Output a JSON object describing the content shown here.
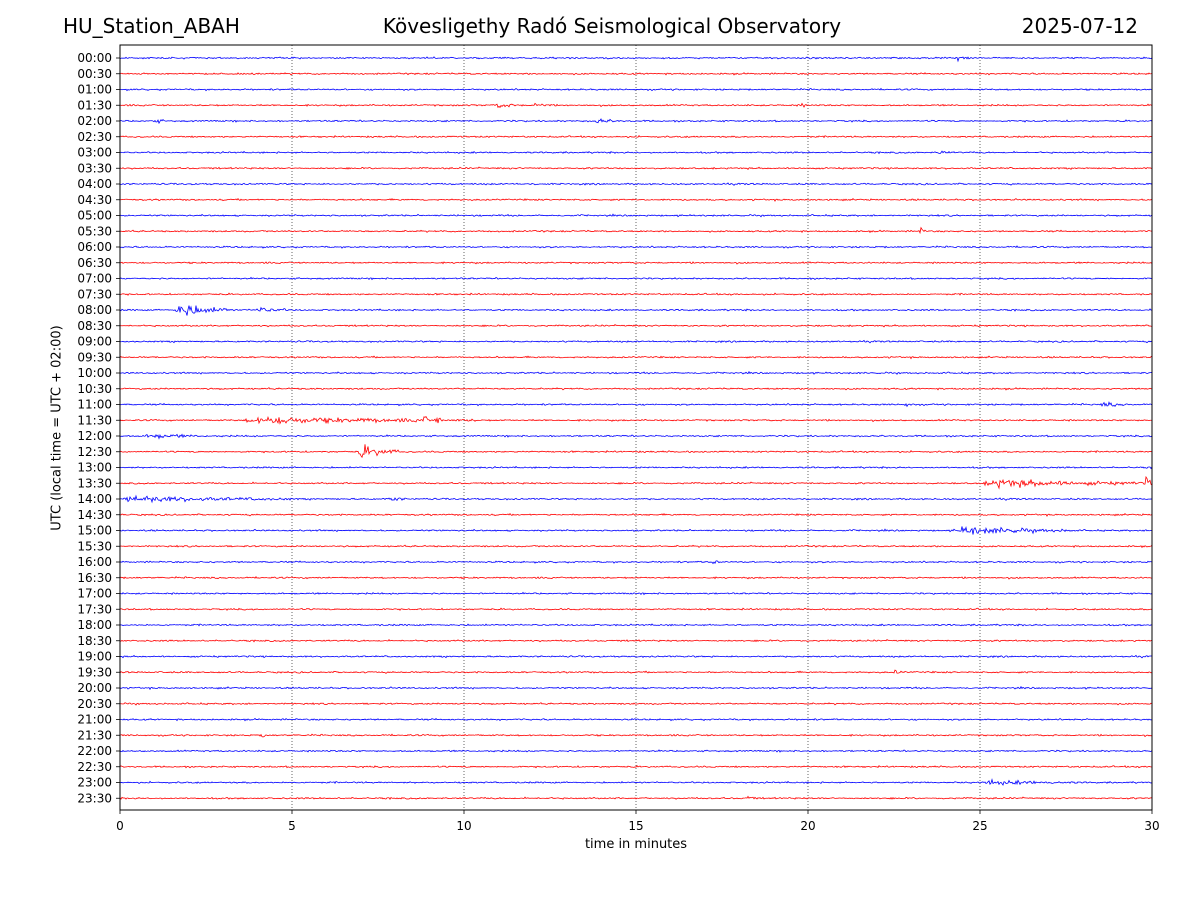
{
  "header": {
    "station": "HU_Station_ABAH",
    "observatory": "Kövesligethy Radó Seismological Observatory",
    "date": "2025-07-12"
  },
  "chart_data": {
    "type": "line",
    "title": "Kövesligethy Radó Seismological Observatory",
    "xlabel": "time in minutes",
    "ylabel": "UTC (local time = UTC + 02:00)",
    "xlim": [
      0,
      30
    ],
    "x_ticks": [
      0,
      5,
      10,
      15,
      20,
      25,
      30
    ],
    "x_gridlines": "dotted vertical lines at each x tick",
    "row_labels": [
      "00:00",
      "00:30",
      "01:00",
      "01:30",
      "02:00",
      "02:30",
      "03:00",
      "03:30",
      "04:00",
      "04:30",
      "05:00",
      "05:30",
      "06:00",
      "06:30",
      "07:00",
      "07:30",
      "08:00",
      "08:30",
      "09:00",
      "09:30",
      "10:00",
      "10:30",
      "11:00",
      "11:30",
      "12:00",
      "12:30",
      "13:00",
      "13:30",
      "14:00",
      "14:30",
      "15:00",
      "15:30",
      "16:00",
      "16:30",
      "17:00",
      "17:30",
      "18:00",
      "18:30",
      "19:00",
      "19:30",
      "20:00",
      "20:30",
      "21:00",
      "21:30",
      "22:00",
      "22:30",
      "23:00",
      "23:30"
    ],
    "trace_colors": [
      "#0000ff",
      "#ff0000"
    ],
    "color_rule": "rows alternate blue (on the hour) and red (half past)",
    "noise_amplitude_rows": 0.05,
    "events": [
      {
        "row": "00:00",
        "x_min": 24.3,
        "duration_min": 0.4,
        "amplitude_rows": 0.12
      },
      {
        "row": "01:30",
        "x_min": 10.9,
        "duration_min": 0.8,
        "amplitude_rows": 0.12
      },
      {
        "row": "01:30",
        "x_min": 12.0,
        "duration_min": 0.6,
        "amplitude_rows": 0.1
      },
      {
        "row": "01:30",
        "x_min": 19.8,
        "duration_min": 0.3,
        "amplitude_rows": 0.12
      },
      {
        "row": "02:00",
        "x_min": 1.0,
        "duration_min": 0.3,
        "amplitude_rows": 0.12
      },
      {
        "row": "02:00",
        "x_min": 13.8,
        "duration_min": 0.8,
        "amplitude_rows": 0.1
      },
      {
        "row": "03:00",
        "x_min": 23.8,
        "duration_min": 0.3,
        "amplitude_rows": 0.15
      },
      {
        "row": "05:30",
        "x_min": 23.2,
        "duration_min": 0.25,
        "amplitude_rows": 0.25
      },
      {
        "row": "08:00",
        "x_min": 1.6,
        "duration_min": 1.6,
        "amplitude_rows": 0.4
      },
      {
        "row": "08:00",
        "x_min": 3.9,
        "duration_min": 1.0,
        "amplitude_rows": 0.15
      },
      {
        "row": "11:00",
        "x_min": 22.8,
        "duration_min": 0.4,
        "amplitude_rows": 0.15
      },
      {
        "row": "11:00",
        "x_min": 28.5,
        "duration_min": 1.0,
        "amplitude_rows": 0.1
      },
      {
        "row": "11:30",
        "x_min": 3.5,
        "duration_min": 7.0,
        "amplitude_rows": 0.18
      },
      {
        "row": "11:30",
        "x_min": 8.8,
        "duration_min": 0.15,
        "amplitude_rows": 0.35
      },
      {
        "row": "11:30",
        "x_min": 9.2,
        "duration_min": 0.15,
        "amplitude_rows": 0.35
      },
      {
        "row": "12:00",
        "x_min": 0.7,
        "duration_min": 1.8,
        "amplitude_rows": 0.12
      },
      {
        "row": "12:30",
        "x_min": 6.9,
        "duration_min": 1.2,
        "amplitude_rows": 0.35
      },
      {
        "row": "13:30",
        "x_min": 25.0,
        "duration_min": 5.0,
        "amplitude_rows": 0.2
      },
      {
        "row": "13:30",
        "x_min": 29.8,
        "duration_min": 0.2,
        "amplitude_rows": 0.35
      },
      {
        "row": "14:00",
        "x_min": 0.0,
        "duration_min": 5.0,
        "amplitude_rows": 0.15
      },
      {
        "row": "14:00",
        "x_min": 7.8,
        "duration_min": 0.6,
        "amplitude_rows": 0.1
      },
      {
        "row": "15:00",
        "x_min": 24.2,
        "duration_min": 3.5,
        "amplitude_rows": 0.2
      },
      {
        "row": "16:00",
        "x_min": 17.2,
        "duration_min": 0.3,
        "amplitude_rows": 0.1
      },
      {
        "row": "19:30",
        "x_min": 22.5,
        "duration_min": 0.3,
        "amplitude_rows": 0.12
      },
      {
        "row": "21:30",
        "x_min": 4.1,
        "duration_min": 0.2,
        "amplitude_rows": 0.3
      },
      {
        "row": "23:00",
        "x_min": 25.0,
        "duration_min": 3.0,
        "amplitude_rows": 0.1
      },
      {
        "row": "23:30",
        "x_min": 18.2,
        "duration_min": 0.3,
        "amplitude_rows": 0.1
      }
    ]
  }
}
